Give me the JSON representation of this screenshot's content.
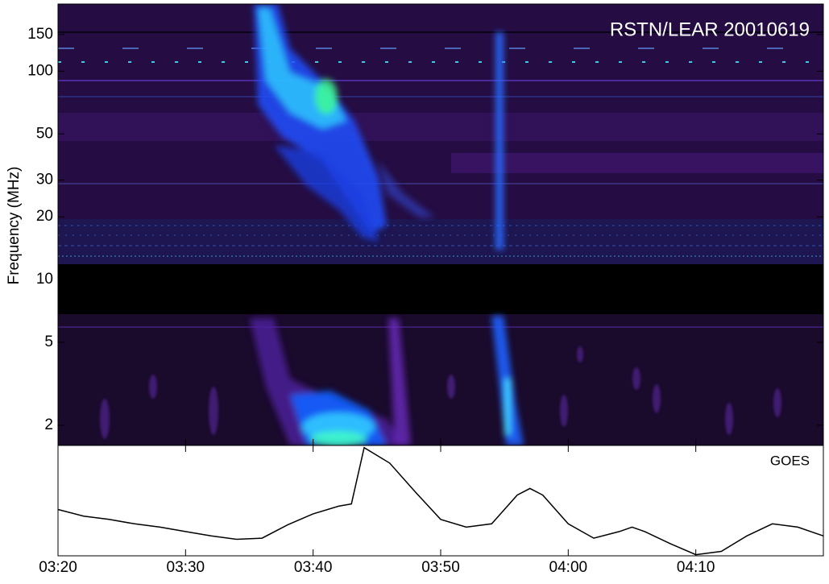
{
  "chart_data": [
    {
      "type": "spectrogram",
      "title": "RSTN/LEAR 20010619",
      "ylabel": "Frequency (MHz)",
      "log": true,
      "ylim": [
        1.6,
        210
      ],
      "yticks": [
        2,
        5,
        10,
        20,
        30,
        50,
        100,
        150
      ]
    },
    {
      "type": "line",
      "label": "GOES",
      "color": "#000000",
      "xlim": [
        "03:20",
        "04:20"
      ],
      "xticks": [
        "03:20",
        "03:30",
        "03:40",
        "03:50",
        "04:00",
        "04:10"
      ],
      "ylim": [
        0,
        100
      ],
      "x": [
        "03:20",
        "03:22",
        "03:24",
        "03:26",
        "03:28",
        "03:30",
        "03:32",
        "03:34",
        "03:36",
        "03:38",
        "03:40",
        "03:42",
        "03:43",
        "03:44",
        "03:46",
        "03:48",
        "03:50",
        "03:52",
        "03:54",
        "03:56",
        "03:57",
        "03:58",
        "04:00",
        "04:02",
        "04:04",
        "04:05",
        "04:06",
        "04:08",
        "04:10",
        "04:12",
        "04:14",
        "04:16",
        "04:18",
        "04:20"
      ],
      "values": [
        42,
        36,
        33,
        29,
        26,
        22,
        18,
        15,
        16,
        28,
        38,
        45,
        47,
        98,
        84,
        58,
        33,
        26,
        29,
        55,
        61,
        55,
        29,
        16,
        22,
        26,
        22,
        11,
        1,
        4,
        18,
        29,
        26,
        18
      ]
    }
  ]
}
